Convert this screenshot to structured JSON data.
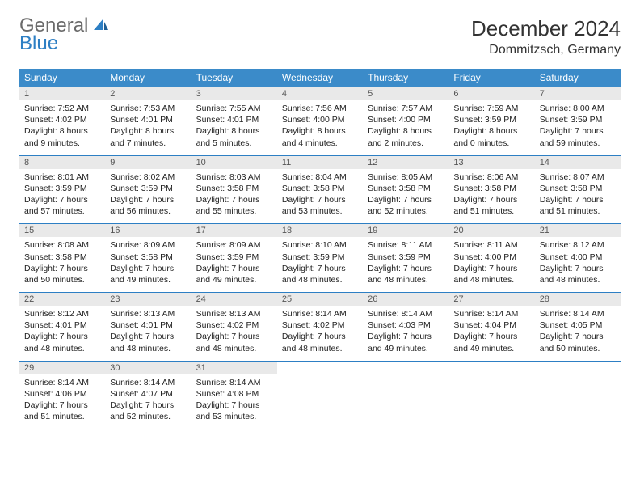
{
  "logo": {
    "word1": "General",
    "word2": "Blue"
  },
  "title": "December 2024",
  "location": "Dommitzsch, Germany",
  "colors": {
    "header_bg": "#3b8bc9",
    "header_text": "#ffffff",
    "daynum_bg": "#e9e9e9",
    "border": "#2d7fc4",
    "logo_gray": "#6a6a6a",
    "logo_blue": "#2d7fc4",
    "text": "#222222"
  },
  "day_names": [
    "Sunday",
    "Monday",
    "Tuesday",
    "Wednesday",
    "Thursday",
    "Friday",
    "Saturday"
  ],
  "weeks": [
    [
      {
        "n": "1",
        "sr": "7:52 AM",
        "ss": "4:02 PM",
        "dl": "8 hours and 9 minutes."
      },
      {
        "n": "2",
        "sr": "7:53 AM",
        "ss": "4:01 PM",
        "dl": "8 hours and 7 minutes."
      },
      {
        "n": "3",
        "sr": "7:55 AM",
        "ss": "4:01 PM",
        "dl": "8 hours and 5 minutes."
      },
      {
        "n": "4",
        "sr": "7:56 AM",
        "ss": "4:00 PM",
        "dl": "8 hours and 4 minutes."
      },
      {
        "n": "5",
        "sr": "7:57 AM",
        "ss": "4:00 PM",
        "dl": "8 hours and 2 minutes."
      },
      {
        "n": "6",
        "sr": "7:59 AM",
        "ss": "3:59 PM",
        "dl": "8 hours and 0 minutes."
      },
      {
        "n": "7",
        "sr": "8:00 AM",
        "ss": "3:59 PM",
        "dl": "7 hours and 59 minutes."
      }
    ],
    [
      {
        "n": "8",
        "sr": "8:01 AM",
        "ss": "3:59 PM",
        "dl": "7 hours and 57 minutes."
      },
      {
        "n": "9",
        "sr": "8:02 AM",
        "ss": "3:59 PM",
        "dl": "7 hours and 56 minutes."
      },
      {
        "n": "10",
        "sr": "8:03 AM",
        "ss": "3:58 PM",
        "dl": "7 hours and 55 minutes."
      },
      {
        "n": "11",
        "sr": "8:04 AM",
        "ss": "3:58 PM",
        "dl": "7 hours and 53 minutes."
      },
      {
        "n": "12",
        "sr": "8:05 AM",
        "ss": "3:58 PM",
        "dl": "7 hours and 52 minutes."
      },
      {
        "n": "13",
        "sr": "8:06 AM",
        "ss": "3:58 PM",
        "dl": "7 hours and 51 minutes."
      },
      {
        "n": "14",
        "sr": "8:07 AM",
        "ss": "3:58 PM",
        "dl": "7 hours and 51 minutes."
      }
    ],
    [
      {
        "n": "15",
        "sr": "8:08 AM",
        "ss": "3:58 PM",
        "dl": "7 hours and 50 minutes."
      },
      {
        "n": "16",
        "sr": "8:09 AM",
        "ss": "3:58 PM",
        "dl": "7 hours and 49 minutes."
      },
      {
        "n": "17",
        "sr": "8:09 AM",
        "ss": "3:59 PM",
        "dl": "7 hours and 49 minutes."
      },
      {
        "n": "18",
        "sr": "8:10 AM",
        "ss": "3:59 PM",
        "dl": "7 hours and 48 minutes."
      },
      {
        "n": "19",
        "sr": "8:11 AM",
        "ss": "3:59 PM",
        "dl": "7 hours and 48 minutes."
      },
      {
        "n": "20",
        "sr": "8:11 AM",
        "ss": "4:00 PM",
        "dl": "7 hours and 48 minutes."
      },
      {
        "n": "21",
        "sr": "8:12 AM",
        "ss": "4:00 PM",
        "dl": "7 hours and 48 minutes."
      }
    ],
    [
      {
        "n": "22",
        "sr": "8:12 AM",
        "ss": "4:01 PM",
        "dl": "7 hours and 48 minutes."
      },
      {
        "n": "23",
        "sr": "8:13 AM",
        "ss": "4:01 PM",
        "dl": "7 hours and 48 minutes."
      },
      {
        "n": "24",
        "sr": "8:13 AM",
        "ss": "4:02 PM",
        "dl": "7 hours and 48 minutes."
      },
      {
        "n": "25",
        "sr": "8:14 AM",
        "ss": "4:02 PM",
        "dl": "7 hours and 48 minutes."
      },
      {
        "n": "26",
        "sr": "8:14 AM",
        "ss": "4:03 PM",
        "dl": "7 hours and 49 minutes."
      },
      {
        "n": "27",
        "sr": "8:14 AM",
        "ss": "4:04 PM",
        "dl": "7 hours and 49 minutes."
      },
      {
        "n": "28",
        "sr": "8:14 AM",
        "ss": "4:05 PM",
        "dl": "7 hours and 50 minutes."
      }
    ],
    [
      {
        "n": "29",
        "sr": "8:14 AM",
        "ss": "4:06 PM",
        "dl": "7 hours and 51 minutes."
      },
      {
        "n": "30",
        "sr": "8:14 AM",
        "ss": "4:07 PM",
        "dl": "7 hours and 52 minutes."
      },
      {
        "n": "31",
        "sr": "8:14 AM",
        "ss": "4:08 PM",
        "dl": "7 hours and 53 minutes."
      },
      null,
      null,
      null,
      null
    ]
  ],
  "labels": {
    "sunrise": "Sunrise: ",
    "sunset": "Sunset: ",
    "daylight": "Daylight: "
  }
}
